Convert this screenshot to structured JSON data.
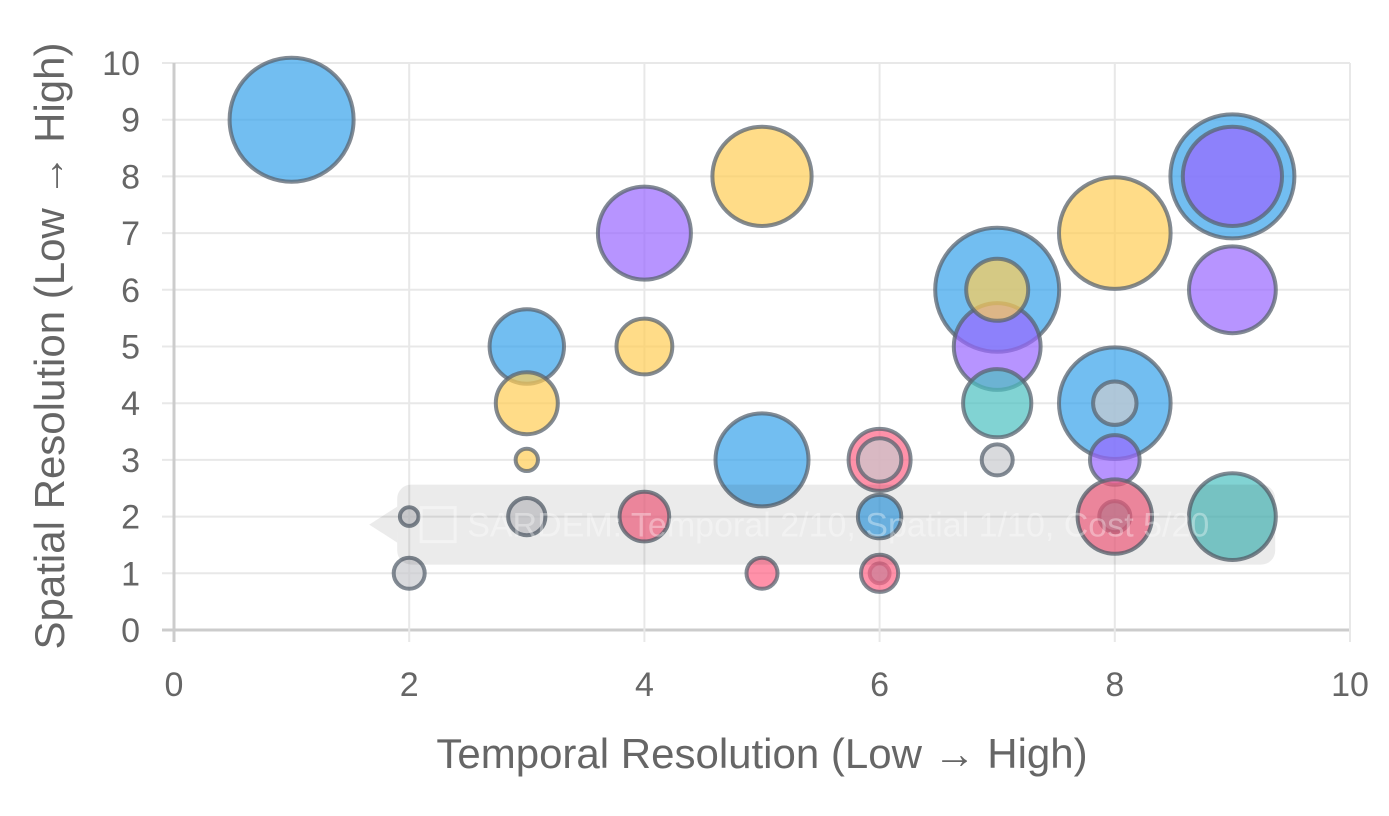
{
  "chart_data": {
    "type": "bubble",
    "title": "",
    "xlabel": "Temporal Resolution (Low → High)",
    "ylabel": "Spatial Resolution (Low → High)",
    "xlim": [
      0,
      10
    ],
    "ylim": [
      0,
      10
    ],
    "x_ticks": [
      "0",
      "2",
      "4",
      "6",
      "8",
      "10"
    ],
    "y_ticks": [
      "0",
      "1",
      "2",
      "3",
      "4",
      "5",
      "6",
      "7",
      "8",
      "9",
      "10"
    ],
    "grid": true,
    "colors": {
      "blue": "#36a2eb",
      "purple": "#9966ff",
      "yellow": "#ffcd56",
      "teal": "#4bc0c0",
      "pink": "#ff6384",
      "grey": "#c9cbcf",
      "border": "#5a6470"
    },
    "points": [
      {
        "x": 1.0,
        "y": 9.0,
        "r": 10,
        "color": "blue"
      },
      {
        "x": 3.0,
        "y": 5.0,
        "r": 6,
        "color": "blue"
      },
      {
        "x": 5.0,
        "y": 3.0,
        "r": 7.5,
        "color": "blue"
      },
      {
        "x": 6.0,
        "y": 2.0,
        "r": 3.5,
        "color": "blue"
      },
      {
        "x": 7.0,
        "y": 6.0,
        "r": 10,
        "color": "blue"
      },
      {
        "x": 8.0,
        "y": 4.0,
        "r": 9,
        "color": "blue"
      },
      {
        "x": 9.0,
        "y": 8.0,
        "r": 10,
        "color": "blue"
      },
      {
        "x": 4.0,
        "y": 7.0,
        "r": 7.5,
        "color": "purple"
      },
      {
        "x": 7.0,
        "y": 5.0,
        "r": 7,
        "color": "purple"
      },
      {
        "x": 9.0,
        "y": 6.0,
        "r": 7,
        "color": "purple"
      },
      {
        "x": 9.0,
        "y": 8.0,
        "r": 8,
        "color": "purple"
      },
      {
        "x": 8.0,
        "y": 3.0,
        "r": 4,
        "color": "purple"
      },
      {
        "x": 5.0,
        "y": 8.0,
        "r": 8,
        "color": "yellow"
      },
      {
        "x": 8.0,
        "y": 7.0,
        "r": 9,
        "color": "yellow"
      },
      {
        "x": 4.0,
        "y": 5.0,
        "r": 4.5,
        "color": "yellow"
      },
      {
        "x": 3.0,
        "y": 4.0,
        "r": 5,
        "color": "yellow"
      },
      {
        "x": 7.0,
        "y": 6.0,
        "r": 5,
        "color": "yellow"
      },
      {
        "x": 3.0,
        "y": 3.0,
        "r": 1.8,
        "color": "yellow"
      },
      {
        "x": 7.0,
        "y": 4.0,
        "r": 5.5,
        "color": "teal"
      },
      {
        "x": 9.0,
        "y": 2.0,
        "r": 7,
        "color": "teal"
      },
      {
        "x": 8.0,
        "y": 2.0,
        "r": 2.5,
        "color": "teal"
      },
      {
        "x": 6.0,
        "y": 1.0,
        "r": 1.6,
        "color": "teal"
      },
      {
        "x": 4.0,
        "y": 2.0,
        "r": 4,
        "color": "pink"
      },
      {
        "x": 6.0,
        "y": 3.0,
        "r": 5,
        "color": "pink"
      },
      {
        "x": 8.0,
        "y": 2.0,
        "r": 6,
        "color": "pink"
      },
      {
        "x": 5.0,
        "y": 1.0,
        "r": 2.5,
        "color": "pink"
      },
      {
        "x": 6.0,
        "y": 1.0,
        "r": 3,
        "color": "pink"
      },
      {
        "x": 2.0,
        "y": 1.0,
        "r": 2.5,
        "color": "grey"
      },
      {
        "x": 2.0,
        "y": 2.0,
        "r": 1.5,
        "color": "grey"
      },
      {
        "x": 3.0,
        "y": 2.0,
        "r": 3,
        "color": "grey"
      },
      {
        "x": 6.0,
        "y": 3.0,
        "r": 3.5,
        "color": "grey"
      },
      {
        "x": 7.0,
        "y": 3.0,
        "r": 2.5,
        "color": "grey"
      },
      {
        "x": 8.0,
        "y": 4.0,
        "r": 3.5,
        "color": "grey"
      }
    ],
    "tooltip": {
      "text": "SARDEM: Temporal 2/10, Spatial 1/10, Cost 5/20",
      "anchor_x": 2.0,
      "anchor_y": 2.0
    }
  }
}
